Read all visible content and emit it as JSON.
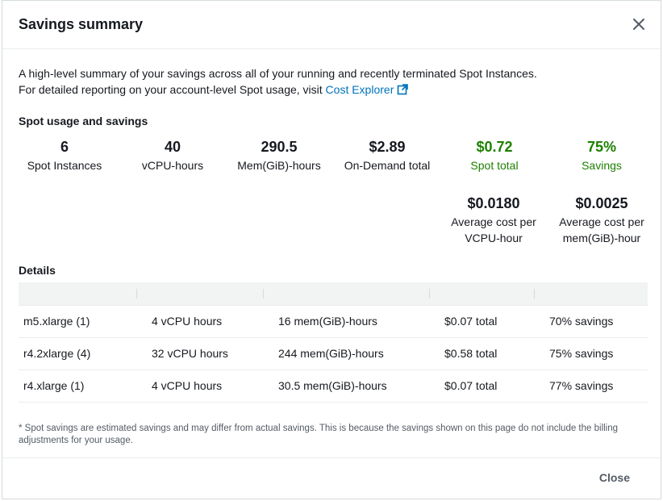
{
  "modal": {
    "title": "Savings summary",
    "close_button_label": "Close"
  },
  "intro": {
    "line1": "A high-level summary of your savings across all of your running and recently terminated Spot Instances.",
    "line2_prefix": "For detailed reporting on your account-level Spot usage, visit ",
    "link_text": "Cost Explorer"
  },
  "usage": {
    "section_title": "Spot usage and savings",
    "stats": [
      {
        "value": "6",
        "label": "Spot Instances"
      },
      {
        "value": "40",
        "label": "vCPU-hours"
      },
      {
        "value": "290.5",
        "label": "Mem(GiB)-hours"
      },
      {
        "value": "$2.89",
        "label": "On-Demand total"
      },
      {
        "value": "$0.72",
        "label": "Spot total"
      },
      {
        "value": "75%",
        "label": "Savings"
      }
    ],
    "averages": [
      {
        "value": "$0.0180",
        "label_line1": "Average cost per",
        "label_line2": "VCPU-hour"
      },
      {
        "value": "$0.0025",
        "label_line1": "Average cost per",
        "label_line2": "mem(GiB)-hour"
      }
    ]
  },
  "details": {
    "section_title": "Details",
    "rows": [
      [
        "m5.xlarge (1)",
        "4 vCPU hours",
        "16 mem(GiB)-hours",
        "$0.07 total",
        "70% savings"
      ],
      [
        "r4.2xlarge (4)",
        "32 vCPU hours",
        "244 mem(GiB)-hours",
        "$0.58 total",
        "75% savings"
      ],
      [
        "r4.xlarge (1)",
        "4 vCPU hours",
        "30.5 mem(GiB)-hours",
        "$0.07 total",
        "77% savings"
      ]
    ]
  },
  "footnote": "* Spot savings are estimated savings and may differ from actual savings. This is because the savings shown on this page do not include the billing adjustments for your usage.",
  "colors": {
    "accent_link": "#0073bb",
    "savings_green": "#1d8102",
    "text": "#16191f",
    "muted": "#545b64"
  },
  "icons": {
    "close": "close-icon",
    "external_link": "external-link-icon"
  }
}
